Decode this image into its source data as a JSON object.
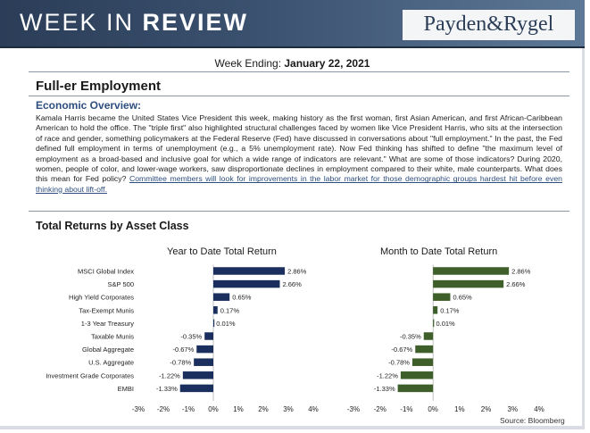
{
  "header": {
    "title_light": "WEEK IN ",
    "title_bold": "REVIEW",
    "logo": "Payden&Rygel"
  },
  "week_ending": {
    "label": "Week Ending: ",
    "date": "January 22, 2021"
  },
  "article": {
    "title": "Full-er Employment",
    "overview_heading": "Economic Overview:",
    "body": "Kamala Harris became the United States Vice President this week, making history as the first woman, first Asian American, and first African-Caribbean American to hold the office. The \"triple first\" also highlighted structural challenges faced by women like Vice President Harris, who sits at the intersection of race and gender, something policymakers at the Federal Reserve (Fed) have discussed in conversations about \"full employment.\" In the past, the Fed defined full employment in terms of unemployment (e.g., a 5% unemployment rate). Now Fed thinking has shifted to define \"the maximum level of employment as a broad-based and inclusive goal for which a wide range of indicators are relevant.\" What are some of those indicators? During 2020, women, people of color, and lower-wage workers, saw disproportionate declines in employment compared to their white, male counterparts. What does this mean for Fed policy? ",
    "link_text": "Committee members will look for improvements in the labor market for those demographic groups hardest hit before even thinking about lift-off."
  },
  "returns_heading": "Total Returns by Asset Class",
  "chart_data": [
    {
      "type": "bar",
      "orientation": "horizontal",
      "title": "Year to Date Total Return",
      "categories": [
        "MSCI Global Index",
        "S&P 500",
        "High Yield Corporates",
        "Tax-Exempt Munis",
        "1-3 Year Treasury",
        "Taxable Munis",
        "Global Aggregate",
        "U.S. Aggregate",
        "Investment Grade Corporates",
        "EMBI"
      ],
      "values": [
        2.86,
        2.66,
        0.65,
        0.17,
        0.01,
        -0.35,
        -0.67,
        -0.78,
        -1.22,
        -1.33
      ],
      "labels": [
        "2.86%",
        "2.66%",
        "0.65%",
        "0.17%",
        "0.01%",
        "-0.35%",
        "-0.67%",
        "-0.78%",
        "-1.22%",
        "-1.33%"
      ],
      "xlim": [
        -3,
        4
      ],
      "ticks": [
        "-3%",
        "-2%",
        "-1%",
        "0%",
        "1%",
        "2%",
        "3%",
        "4%"
      ],
      "color": "#1b2f5e"
    },
    {
      "type": "bar",
      "orientation": "horizontal",
      "title": "Month to Date Total Return",
      "categories": [
        "MSCI Global Index",
        "S&P 500",
        "High Yield Corporates",
        "Tax-Exempt Munis",
        "1-3 Year Treasury",
        "Taxable Munis",
        "Global Aggregate",
        "U.S. Aggregate",
        "Investment Grade Corporates",
        "EMBI"
      ],
      "values": [
        2.86,
        2.66,
        0.65,
        0.17,
        0.01,
        -0.35,
        -0.67,
        -0.78,
        -1.22,
        -1.33
      ],
      "labels": [
        "2.86%",
        "2.66%",
        "0.65%",
        "0.17%",
        "0.01%",
        "-0.35%",
        "-0.67%",
        "-0.78%",
        "-1.22%",
        "-1.33%"
      ],
      "xlim": [
        -3,
        4
      ],
      "ticks": [
        "-3%",
        "-2%",
        "-1%",
        "0%",
        "1%",
        "2%",
        "3%",
        "4%"
      ],
      "color": "#3e5f2a"
    }
  ],
  "source": "Source: Bloomberg"
}
